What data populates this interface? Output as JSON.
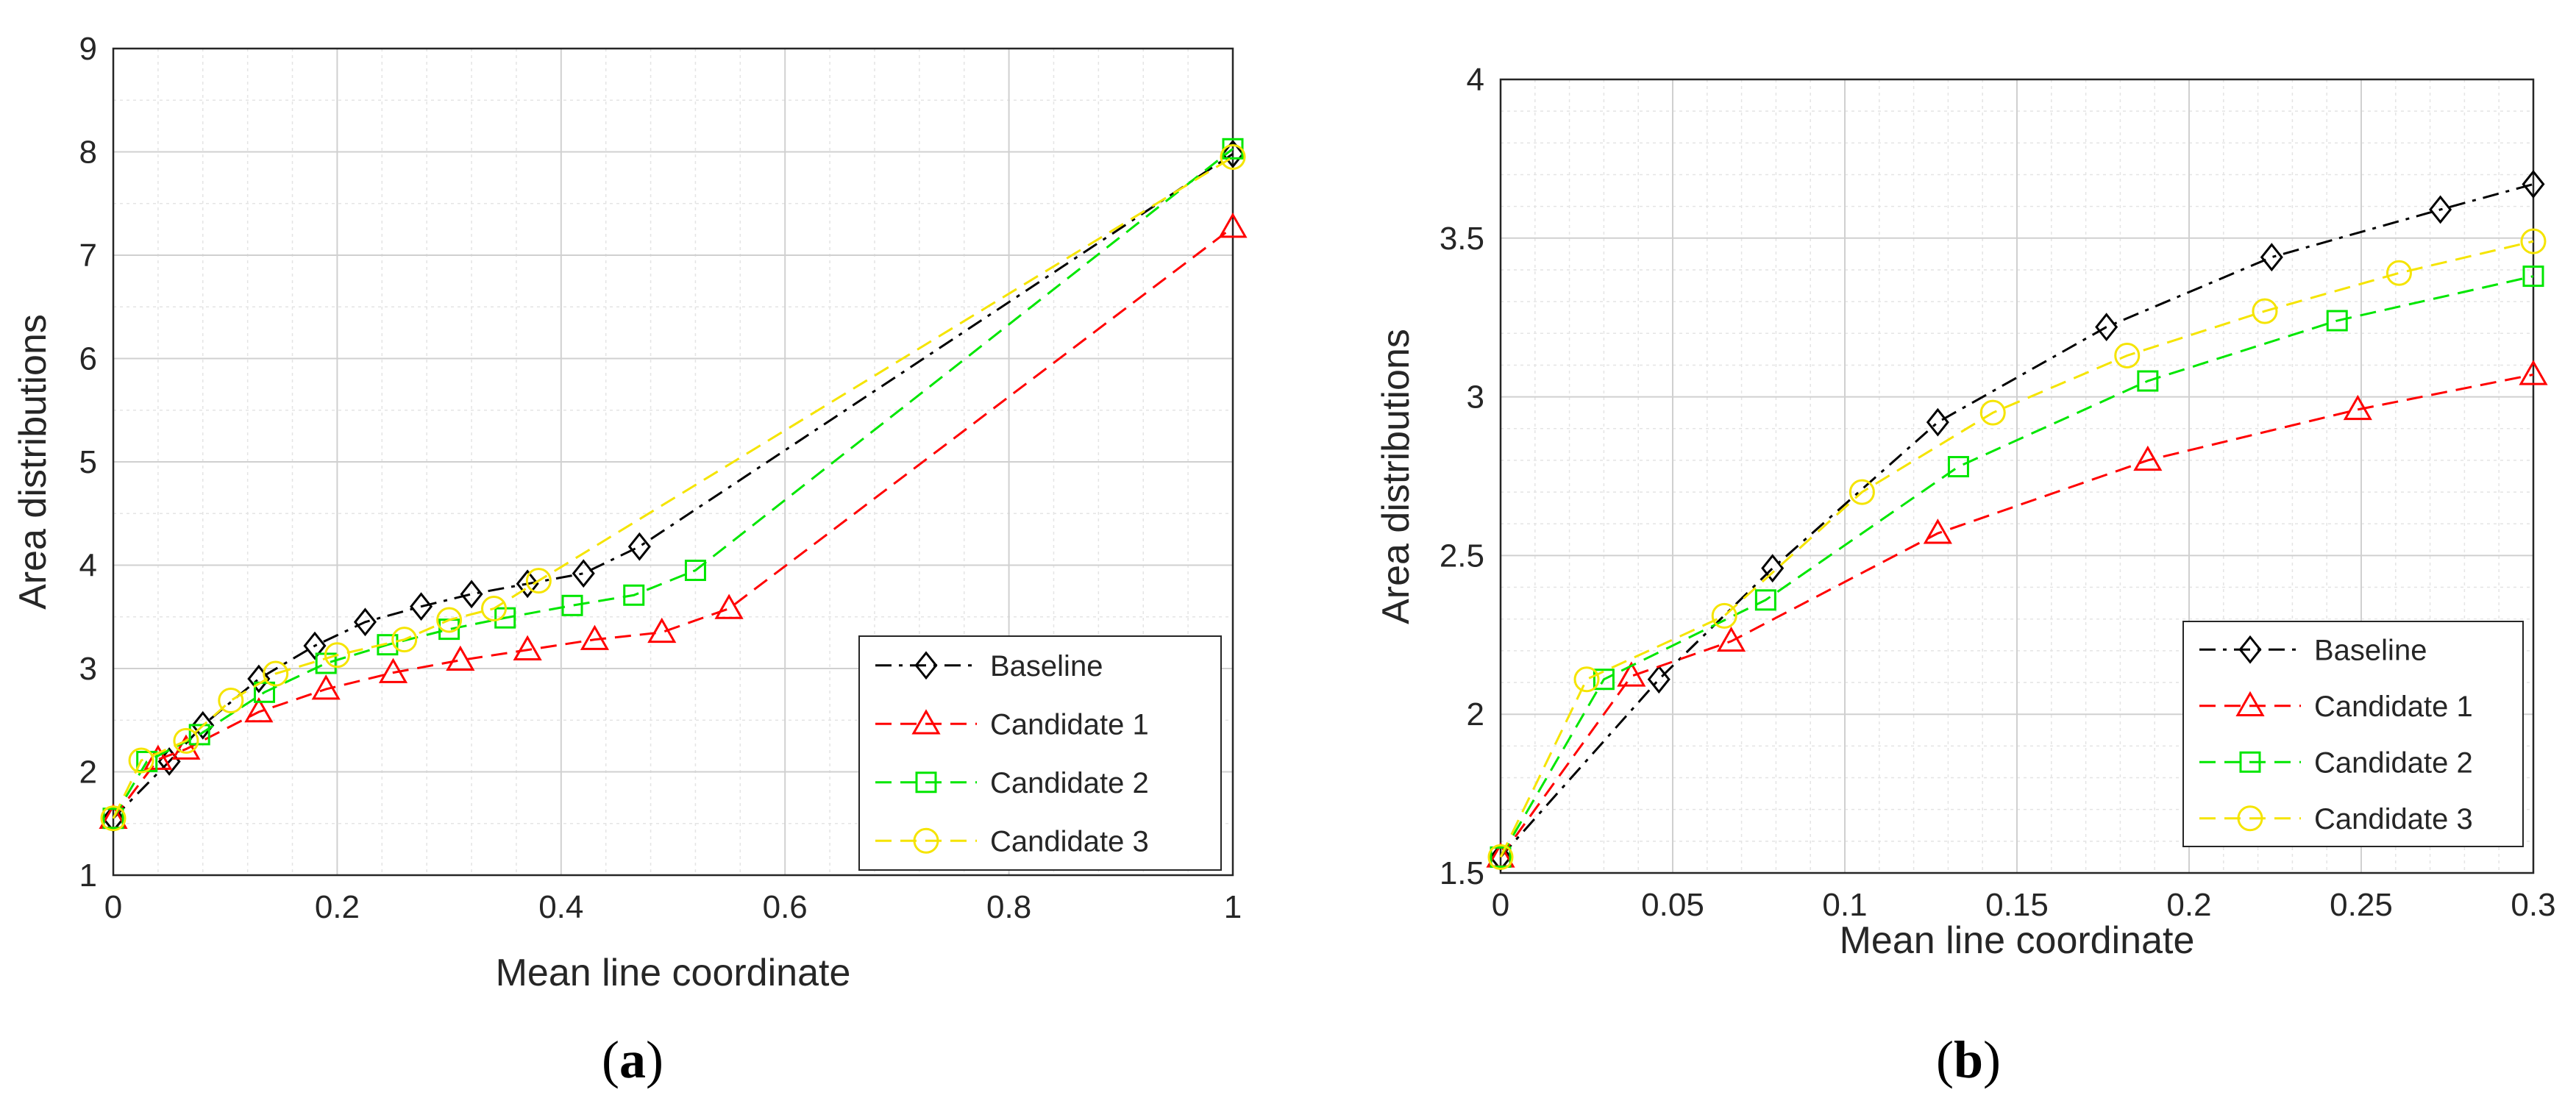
{
  "chart_data": [
    {
      "type": "line",
      "panel": "a",
      "caption": "(a)",
      "xlabel": "Mean line coordinate",
      "ylabel": "Area distributions",
      "xlim": [
        0,
        1
      ],
      "ylim": [
        1,
        9
      ],
      "xticks": [
        0,
        0.2,
        0.4,
        0.6,
        0.8,
        1
      ],
      "xtick_labels": [
        "0",
        "0.2",
        "0.4",
        "0.6",
        "0.8",
        "1"
      ],
      "yticks": [
        1,
        2,
        3,
        4,
        5,
        6,
        7,
        8,
        9
      ],
      "ytick_labels": [
        "1",
        "2",
        "3",
        "4",
        "5",
        "6",
        "7",
        "8",
        "9"
      ],
      "grid": true,
      "legend_position": "bottom-right",
      "series": [
        {
          "name": "Baseline",
          "color": "#000000",
          "dash": "dashdot",
          "marker": "diamond",
          "x": [
            0,
            0.05,
            0.08,
            0.13,
            0.18,
            0.225,
            0.275,
            0.32,
            0.37,
            0.42,
            0.47,
            1
          ],
          "y": [
            1.55,
            2.1,
            2.45,
            2.9,
            3.22,
            3.45,
            3.6,
            3.72,
            3.82,
            3.92,
            4.18,
            7.98
          ]
        },
        {
          "name": "Candidate 1",
          "color": "#ff0000",
          "dash": "dash",
          "marker": "triangle",
          "x": [
            0,
            0.04,
            0.065,
            0.13,
            0.19,
            0.25,
            0.31,
            0.37,
            0.43,
            0.49,
            0.55,
            1
          ],
          "y": [
            1.55,
            2.12,
            2.22,
            2.58,
            2.8,
            2.96,
            3.08,
            3.18,
            3.28,
            3.35,
            3.58,
            7.27
          ]
        },
        {
          "name": "Candidate 2",
          "color": "#00e600",
          "dash": "dash",
          "marker": "square",
          "x": [
            0,
            0.03,
            0.077,
            0.135,
            0.19,
            0.245,
            0.3,
            0.35,
            0.41,
            0.465,
            0.52,
            1
          ],
          "y": [
            1.55,
            2.1,
            2.36,
            2.77,
            3.05,
            3.23,
            3.38,
            3.49,
            3.61,
            3.71,
            3.95,
            8.03
          ]
        },
        {
          "name": "Candidate 3",
          "color": "#f5e400",
          "dash": "dash",
          "marker": "circle",
          "x": [
            0,
            0.025,
            0.065,
            0.105,
            0.145,
            0.2,
            0.26,
            0.3,
            0.34,
            0.38,
            1
          ],
          "y": [
            1.55,
            2.11,
            2.3,
            2.69,
            2.95,
            3.13,
            3.28,
            3.47,
            3.58,
            3.85,
            7.95
          ]
        }
      ]
    },
    {
      "type": "line",
      "panel": "b",
      "caption": "(b)",
      "xlabel": "Mean line coordinate",
      "ylabel": "Area distributions",
      "xlim": [
        0,
        0.3
      ],
      "ylim": [
        1.5,
        4
      ],
      "xticks": [
        0,
        0.05,
        0.1,
        0.15,
        0.2,
        0.25,
        0.3
      ],
      "xtick_labels": [
        "0",
        "0.05",
        "0.1",
        "0.15",
        "0.2",
        "0.25",
        "0.3"
      ],
      "yticks": [
        1.5,
        2,
        2.5,
        3,
        3.5,
        4
      ],
      "ytick_labels": [
        "1.5",
        "2",
        "2.5",
        "3",
        "3.5",
        "4"
      ],
      "grid": true,
      "legend_position": "bottom-right",
      "series": [
        {
          "name": "Baseline",
          "color": "#000000",
          "dash": "dashdot",
          "marker": "diamond",
          "x": [
            0,
            0.046,
            0.079,
            0.127,
            0.176,
            0.224,
            0.273,
            0.3
          ],
          "y": [
            1.55,
            2.11,
            2.46,
            2.92,
            3.22,
            3.44,
            3.59,
            3.67
          ]
        },
        {
          "name": "Candidate 1",
          "color": "#ff0000",
          "dash": "dash",
          "marker": "triangle",
          "x": [
            0,
            0.038,
            0.067,
            0.127,
            0.188,
            0.249,
            0.3
          ],
          "y": [
            1.55,
            2.12,
            2.23,
            2.57,
            2.8,
            2.96,
            3.07
          ]
        },
        {
          "name": "Candidate 2",
          "color": "#00e600",
          "dash": "dash",
          "marker": "square",
          "x": [
            0,
            0.03,
            0.077,
            0.133,
            0.188,
            0.243,
            0.3
          ],
          "y": [
            1.55,
            2.11,
            2.36,
            2.78,
            3.05,
            3.24,
            3.38
          ]
        },
        {
          "name": "Candidate 3",
          "color": "#f5e400",
          "dash": "dash",
          "marker": "circle",
          "x": [
            0,
            0.025,
            0.065,
            0.105,
            0.143,
            0.182,
            0.222,
            0.261,
            0.3
          ],
          "y": [
            1.55,
            2.11,
            2.31,
            2.7,
            2.95,
            3.13,
            3.27,
            3.39,
            3.49
          ]
        }
      ]
    }
  ]
}
